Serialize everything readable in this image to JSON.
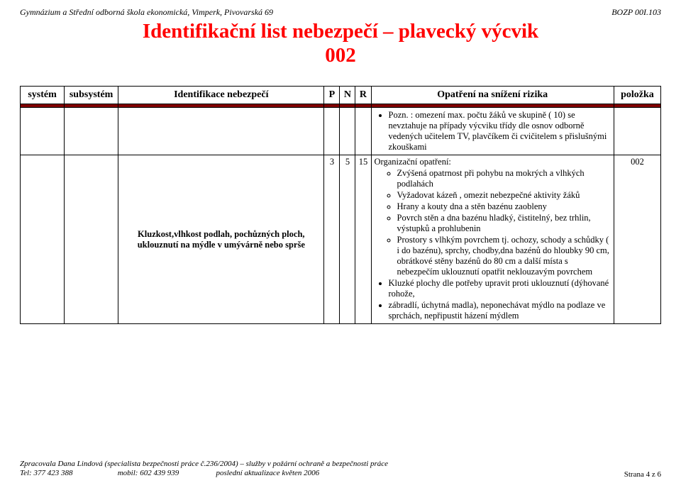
{
  "header": {
    "left": "Gymnázium a Střední odborná škola ekonomická, Vimperk, Pivovarská 69",
    "right": "BOZP 00I.103"
  },
  "title": {
    "line1": "Identifikační list nebezpečí – plavecký výcvik",
    "line2": "002"
  },
  "columns": {
    "sys": "systém",
    "sub": "subsystém",
    "ident": "Identifikace nebezpečí",
    "p": "P",
    "n": "N",
    "r": "R",
    "op": "Opatření na snížení rizika",
    "item": "položka"
  },
  "carry_over_bullet": "Pozn. : omezení  max. počtu  žáků ve skupině ( 10) se nevztahuje   na případy výcviku  třídy  dle  osnov     odborně vedených učitelem TV, plavčíkem    či cvičitelem s přislušnými zkouškami",
  "row": {
    "ident": "Kluzkost,vlhkost podlah, pochůzných ploch, uklouznutí na mýdle v umývárně nebo sprše",
    "p": "3",
    "n": "5",
    "r": "15",
    "op_intro": "Organizační opatření:",
    "op_bullets": [
      "Zvýšená opatrnost při pohybu na mokrých a vlhkých podlahách",
      "Vyžadovat kázeň , omezit nebezpečné aktivity žáků",
      "Hrany a kouty dna a stěn bazénu zaobleny",
      "Povrch stěn a dna bazénu hladký, čistitelný, bez trhlin, výstupků a prohlubenin",
      "Prostory s vlhkým povrchem tj. ochozy, schody a schůdky ( i do bazénu), sprchy, chodby,dna bazénů do hloubky 90 cm, obrátkové stěny  bazénů do 80 cm a další místa s nebezpečím uklouznutí opatřit neklouzavým povrchem"
    ],
    "op_extra": [
      "Kluzké plochy   dle potřeby upravit proti uklouznutí (dýhované rohože,",
      "zábradlí,  úchytná madla), neponechávat mýdlo   na  podlaze  ve  sprchách, nepřipustit házení mýdlem"
    ],
    "item": "002"
  },
  "footer": {
    "l1": "Zpracovala Dana Lindová (specialista bezpečnosti práce č.236/2004) – služby v požární ochraně a bezpečnosti práce",
    "l2a": "Tel: 377 423 388",
    "l2b": "mobil: 602 439 939",
    "l2c": "poslední aktualizace květen 2006",
    "page_label": "Strana",
    "page_num": "4 z 6"
  }
}
